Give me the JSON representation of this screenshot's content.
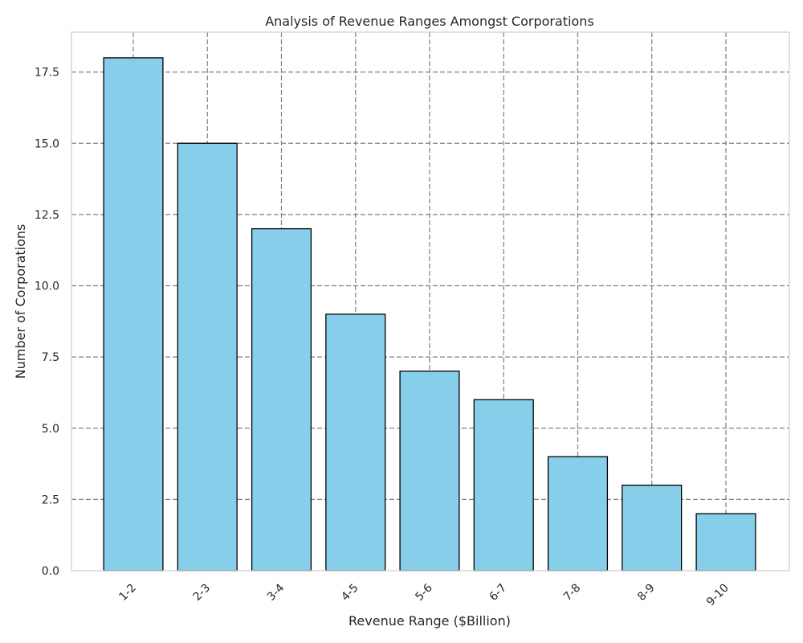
{
  "chart_data": {
    "type": "bar",
    "title": "Analysis of Revenue Ranges Amongst Corporations",
    "xlabel": "Revenue Range ($Billion)",
    "ylabel": "Number of Corporations",
    "categories": [
      "1-2",
      "2-3",
      "3-4",
      "4-5",
      "5-6",
      "6-7",
      "7-8",
      "8-9",
      "9-10"
    ],
    "values": [
      18,
      15,
      12,
      9,
      7,
      6,
      4,
      3,
      2
    ],
    "ylim": [
      0,
      18.9
    ],
    "yticks": [
      "0.0",
      "2.5",
      "5.0",
      "7.5",
      "10.0",
      "12.5",
      "15.0",
      "17.5"
    ],
    "grid": true,
    "bar_color": "#87CEEB",
    "edge_color": "#000000"
  }
}
